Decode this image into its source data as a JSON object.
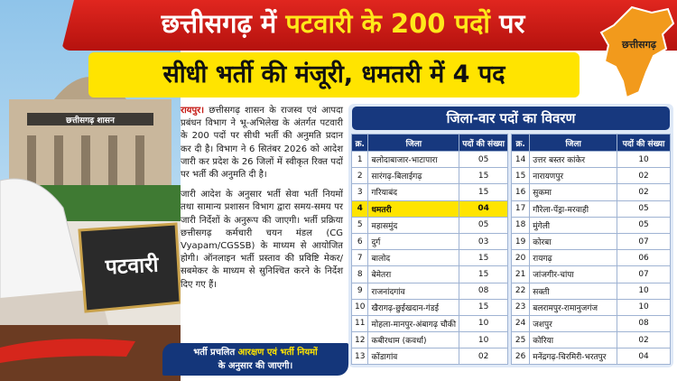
{
  "header": {
    "title_parts": [
      "छत्तीसगढ़ में",
      "पटवारी के 200 पदों",
      "पर"
    ],
    "subtitle": "सीधी भर्ती की मंजूरी, धमतरी में 4 पद",
    "map_label": "छत्तीसगढ़"
  },
  "image": {
    "building_sign": "छत्तीसगढ़ शासन",
    "nameplate": "पटवारी"
  },
  "article": {
    "paragraphs": [
      {
        "lead": "रायपुर।",
        "text": "छत्तीसगढ़ शासन के राजस्व एवं आपदा प्रबंधन विभाग ने भू-अभिलेख के अंतर्गत पटवारी के 200 पदों पर सीधी भर्ती की अनुमति प्रदान कर दी है। विभाग ने 6 सितंबर 2026 को आदेश जारी कर प्रदेश के 26 जिलों में स्वीकृत रिक्त पदों पर भर्ती की अनुमति दी है।"
      },
      {
        "text": "जारी आदेश के अनुसार भर्ती सेवा भर्ती नियमों तथा सामान्य प्रशासन विभाग द्वारा समय-समय पर जारी निर्देशों के अनुरूप की जाएगी। भर्ती प्रक्रिया छत्तीसगढ़ कर्मचारी चयन मंडल (CG Vyapam/CGSSB) के माध्यम से आयोजित होगी। ऑनलाइन भर्ती प्रस्ताव की प्रविष्टि मेकर/सबमेकर के माध्यम से सुनिश्चित करने के निर्देश दिए गए हैं।"
      }
    ]
  },
  "banner": {
    "parts": [
      "भर्ती प्रचलित",
      "आरक्षण एवं भर्ती नियमों",
      "के अनुसार की जाएगी।"
    ]
  },
  "table": {
    "title": "जिला-वार पदों का विवरण",
    "tables": [
      {
        "columns": [
          "क्र.",
          "जिला",
          "पदों की संख्या"
        ],
        "rows": [
          [
            "1",
            "बलोदाबाजार-भाटापारा",
            "05"
          ],
          [
            "2",
            "सारंगढ़-बिलाईगढ़",
            "15"
          ],
          [
            "3",
            "गरियाबंद",
            "15"
          ],
          [
            "4",
            "धमतरी",
            "04"
          ],
          [
            "5",
            "महासमुंद",
            "05"
          ],
          [
            "6",
            "दुर्ग",
            "03"
          ],
          [
            "7",
            "बालोद",
            "15"
          ],
          [
            "8",
            "बेमेतरा",
            "15"
          ],
          [
            "9",
            "राजनांदगांव",
            "08"
          ],
          [
            "10",
            "खैरागढ़-छुईखदान-गंडई",
            "15"
          ],
          [
            "11",
            "मोहला-मानपुर-अंबागढ़ चौकी",
            "10"
          ],
          [
            "12",
            "कबीरधाम (कवर्धा)",
            "10"
          ],
          [
            "13",
            "कोंडागांव",
            "02"
          ]
        ]
      },
      {
        "columns": [
          "क्र.",
          "जिला",
          "पदों की संख्या"
        ],
        "rows": [
          [
            "14",
            "उत्तर बस्तर कांकेर",
            "10"
          ],
          [
            "15",
            "नारायणपुर",
            "02"
          ],
          [
            "16",
            "सुकमा",
            "02"
          ],
          [
            "17",
            "गौरेला-पेंड्रा-मरवाही",
            "05"
          ],
          [
            "18",
            "मुंगेली",
            "05"
          ],
          [
            "19",
            "कोरबा",
            "07"
          ],
          [
            "20",
            "रायगढ़",
            "06"
          ],
          [
            "21",
            "जांजगीर-चांपा",
            "07"
          ],
          [
            "22",
            "सक्ती",
            "10"
          ],
          [
            "23",
            "बलरामपुर-रामानुजगंज",
            "10"
          ],
          [
            "24",
            "जशपुर",
            "08"
          ],
          [
            "25",
            "कोरिया",
            "02"
          ],
          [
            "26",
            "मनेंद्रगढ़-चिरमिरी-भरतपुर",
            "04"
          ]
        ]
      }
    ]
  }
}
